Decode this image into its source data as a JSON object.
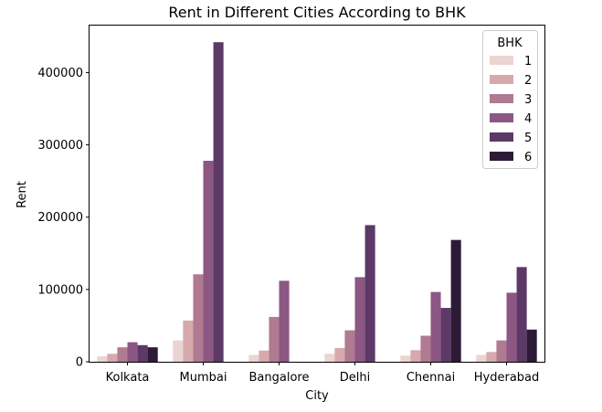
{
  "chart_data": {
    "type": "bar",
    "title": "Rent in Different Cities According to BHK",
    "xlabel": "City",
    "ylabel": "Rent",
    "ylim": [
      0,
      465000
    ],
    "yticks": [
      0,
      100000,
      200000,
      300000,
      400000
    ],
    "ytick_labels": [
      "0",
      "100000",
      "200000",
      "300000",
      "400000"
    ],
    "categories": [
      "Kolkata",
      "Mumbai",
      "Bangalore",
      "Delhi",
      "Chennai",
      "Hyderabad"
    ],
    "legend": {
      "title": "BHK",
      "placement": "top-right"
    },
    "grid": false,
    "series": [
      {
        "name": "1",
        "color": "#ebd4d1",
        "values": [
          7500,
          29500,
          9500,
          11000,
          8500,
          9500
        ]
      },
      {
        "name": "2",
        "color": "#d6a9ad",
        "values": [
          11000,
          57000,
          15500,
          19000,
          16000,
          13500
        ]
      },
      {
        "name": "3",
        "color": "#b07a92",
        "values": [
          20000,
          121000,
          62000,
          43500,
          36000,
          29500
        ]
      },
      {
        "name": "4",
        "color": "#8c5782",
        "values": [
          27000,
          278000,
          112000,
          117000,
          96500,
          95500
        ]
      },
      {
        "name": "5",
        "color": "#5c3966",
        "values": [
          23000,
          442000,
          null,
          189000,
          74500,
          131000
        ]
      },
      {
        "name": "6",
        "color": "#2c1b36",
        "values": [
          20000,
          null,
          null,
          null,
          168500,
          44500
        ]
      }
    ]
  }
}
